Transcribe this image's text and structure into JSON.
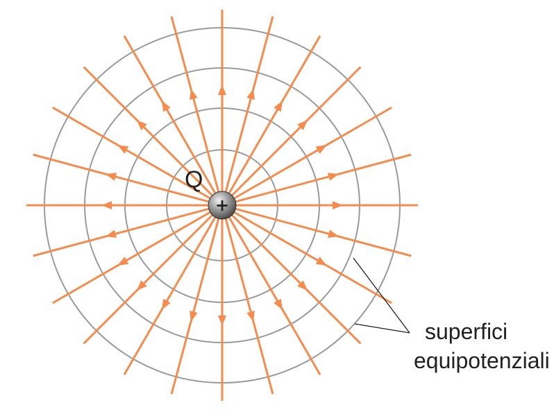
{
  "labels": {
    "charge": "Q",
    "charge_sign": "+",
    "surfaces_line1": "superfici",
    "surfaces_line2": "equipotenziali"
  },
  "colors": {
    "field_lines": "#f58b4c",
    "equipotential": "#9a9a9a",
    "text": "#231f20",
    "charge_light": "#f2f2f2",
    "charge_dark": "#3c3c3c"
  },
  "field_lines": {
    "count": 24,
    "direction": "outward"
  },
  "equipotential_surfaces": {
    "count": 4
  }
}
